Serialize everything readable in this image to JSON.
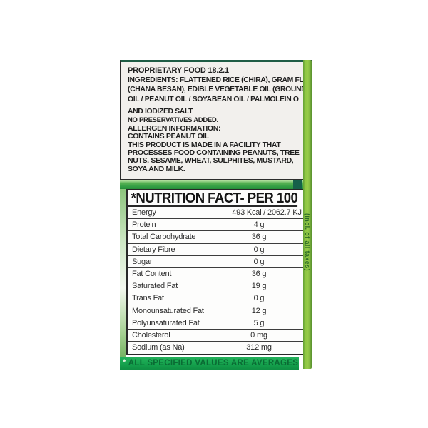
{
  "ingredients_box": {
    "title": "PROPRIETARY FOOD 18.2.1",
    "line1_label": "INGREDIENTS:",
    "line1_rest": " FLATTENED RICE (CHIRA), GRAM FLO",
    "line2_start": "(CHANA BESAN), EDIBLE VEGETABLE OIL ",
    "line2_bold": "(GROUNDN",
    "line3_bold": "OIL / PEANUT OIL",
    "line3_rest": " / SOYABEAN OIL / PALMOLEIN O",
    "line4": "AND IODIZED SALT",
    "no_preservatives": "NO PRESERVATIVES ADDED.",
    "allergen_lines": [
      "ALLERGEN INFORMATION:",
      "CONTAINS PEANUT OIL",
      "THIS PRODUCT IS MADE IN A FACILITY THAT",
      "PROCESSES FOOD CONTAINING PEANUTS, TREE",
      "NUTS, SESAME, WHEAT, SULPHITES, MUSTARD,",
      "SOYA AND MILK."
    ]
  },
  "nutrition": {
    "header": "*NUTRITION FACT- PER 100",
    "rows": [
      {
        "label": "Energy",
        "value": "493 Kcal / 2062.7 KJ"
      },
      {
        "label": "Protein",
        "value": "4 g"
      },
      {
        "label": "Total Carbohydrate",
        "value": "36 g"
      },
      {
        "label": "Dietary Fibre",
        "value": "0 g"
      },
      {
        "label": "Sugar",
        "value": "0 g"
      },
      {
        "label": "Fat Content",
        "value": "36 g"
      },
      {
        "label": "Saturated Fat",
        "value": "19 g"
      },
      {
        "label": "Trans Fat",
        "value": "0 g"
      },
      {
        "label": "Monounsaturated Fat",
        "value": "12 g"
      },
      {
        "label": "Polyunsaturated Fat",
        "value": "5 g"
      },
      {
        "label": "Cholesterol",
        "value": "0 mg"
      },
      {
        "label": "Sodium (as Na)",
        "value": "312 mg"
      }
    ],
    "footnote_star": "*",
    "footnote": "ALL SPECIFIED VALUES ARE AVERAGES"
  },
  "side_strip": {
    "text": "(incl. of all taxes)"
  },
  "colors": {
    "box_background": "#f2f0ed",
    "box_top_accent": "#1e5c45",
    "band_green": "#2f9c42",
    "footnote_bar_green": "#14a04c",
    "footnote_text_green": "#0a6b34",
    "edge_strip_green": "#8ec642",
    "strip_text_green": "#2c6b26",
    "table_border": "#282828"
  }
}
